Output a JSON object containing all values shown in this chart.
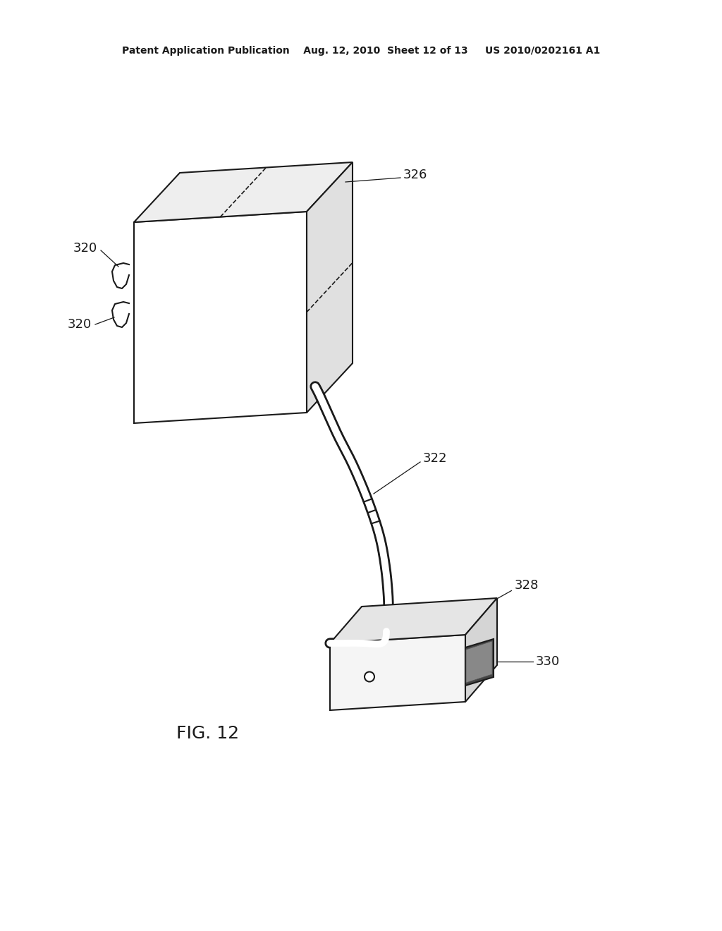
{
  "background_color": "#ffffff",
  "line_color": "#1a1a1a",
  "header_text": "Patent Application Publication    Aug. 12, 2010  Sheet 12 of 13     US 2010/0202161 A1",
  "fig_label": "FIG. 12",
  "line_width": 1.5,
  "fig_label_fontsize": 18,
  "label_fontsize": 13,
  "header_fontsize": 10
}
